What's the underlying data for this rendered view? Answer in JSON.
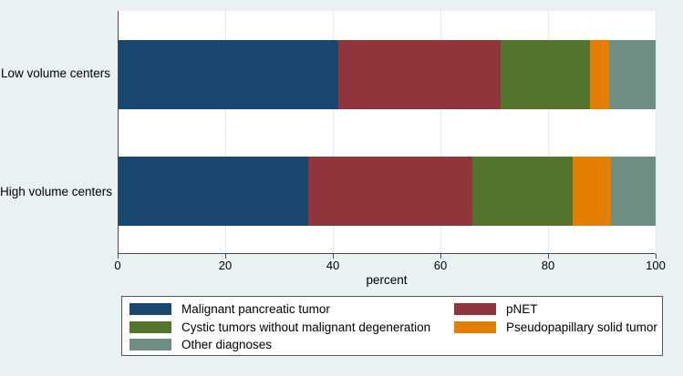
{
  "chart_data": {
    "type": "bar",
    "orientation": "horizontal",
    "stacked": true,
    "title": "",
    "xlabel": "percent",
    "ylabel": "",
    "xlim": [
      0,
      100
    ],
    "x_ticks": [
      0,
      20,
      40,
      60,
      80,
      100
    ],
    "grid": true,
    "legend_position": "bottom",
    "categories": [
      "Low volume centers",
      "High volume centers"
    ],
    "series": [
      {
        "name": "Malignant pancreatic tumor",
        "color": "#1a476f",
        "values": [
          40.9,
          35.3
        ]
      },
      {
        "name": "pNET",
        "color": "#90353b",
        "values": [
          30.2,
          30.5
        ]
      },
      {
        "name": "Cystic tumors without malignant degeneration",
        "color": "#55752f",
        "values": [
          16.6,
          18.8
        ]
      },
      {
        "name": "Pseudopapillary solid tumor",
        "color": "#e37e00",
        "values": [
          3.7,
          7.1
        ]
      },
      {
        "name": "Other diagnoses",
        "color": "#6e8e84",
        "values": [
          8.6,
          8.3
        ]
      }
    ]
  },
  "legend": {
    "columns": [
      [
        0,
        2,
        4
      ],
      [
        1,
        3
      ]
    ]
  },
  "colors": {
    "background": "#eaf1f3",
    "plot_background": "#ffffff",
    "gridline": "#e2ebee",
    "axis": "#4a4a4a",
    "legend_border": "#55585a",
    "text": "#000000"
  }
}
